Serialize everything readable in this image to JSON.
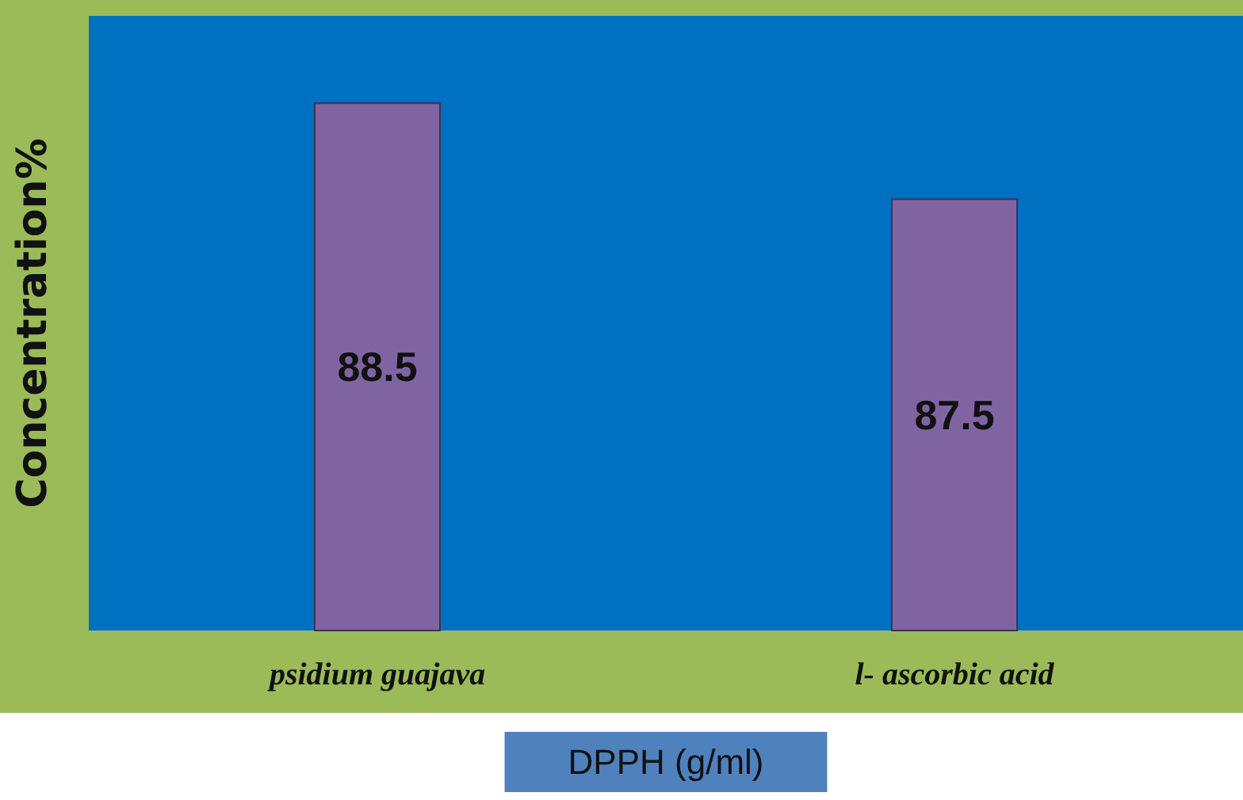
{
  "chart_data": {
    "type": "bar",
    "categories": [
      "psidium guajava",
      "l- ascorbic acid"
    ],
    "values": [
      88.5,
      87.5
    ],
    "color": "#8064a2",
    "ylim": [
      83,
      89.4
    ],
    "tick_labels": "x",
    "data_labels": true,
    "ylabel": "Concentration%",
    "xlabel": "DPPH (g/ml)"
  }
}
